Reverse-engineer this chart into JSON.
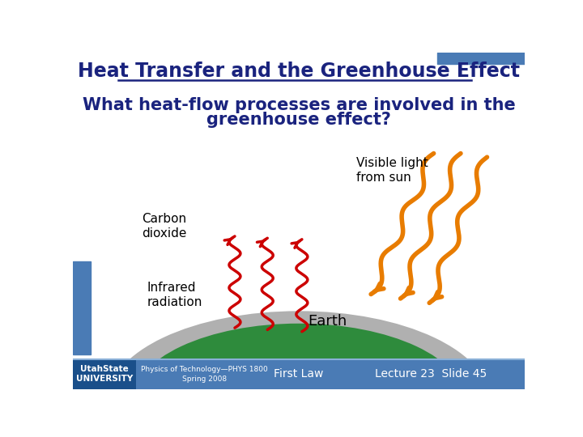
{
  "title": "Heat Transfer and the Greenhouse Effect",
  "subtitle_line1": "What heat-flow processes are involved in the",
  "subtitle_line2": "greenhouse effect?",
  "label_co2": "Carbon\ndioxide",
  "label_infrared": "Infrared\nradiation",
  "label_visible": "Visible light\nfrom sun",
  "label_earth": "Earth",
  "footer_left": "Physics of Technology—PHYS 1800\nSpring 2008",
  "footer_center": "First Law",
  "footer_right": "Lecture 23  Slide 45",
  "footer_logo": "UtahState\nUNIVERSITY",
  "bg_color": "#ffffff",
  "title_color": "#1a237e",
  "subtitle_color": "#1a237e",
  "footer_bg": "#4a7bb5",
  "footer_text_color": "#ffffff",
  "earth_green": "#2e8b3c",
  "earth_blue": "#4a9fd4",
  "atmosphere_color": "#b0b0b0",
  "infrared_color": "#cc0000",
  "visible_color": "#e87c00",
  "accent_bar_color": "#4a7bb5",
  "logo_bg_color": "#1a4f8a"
}
